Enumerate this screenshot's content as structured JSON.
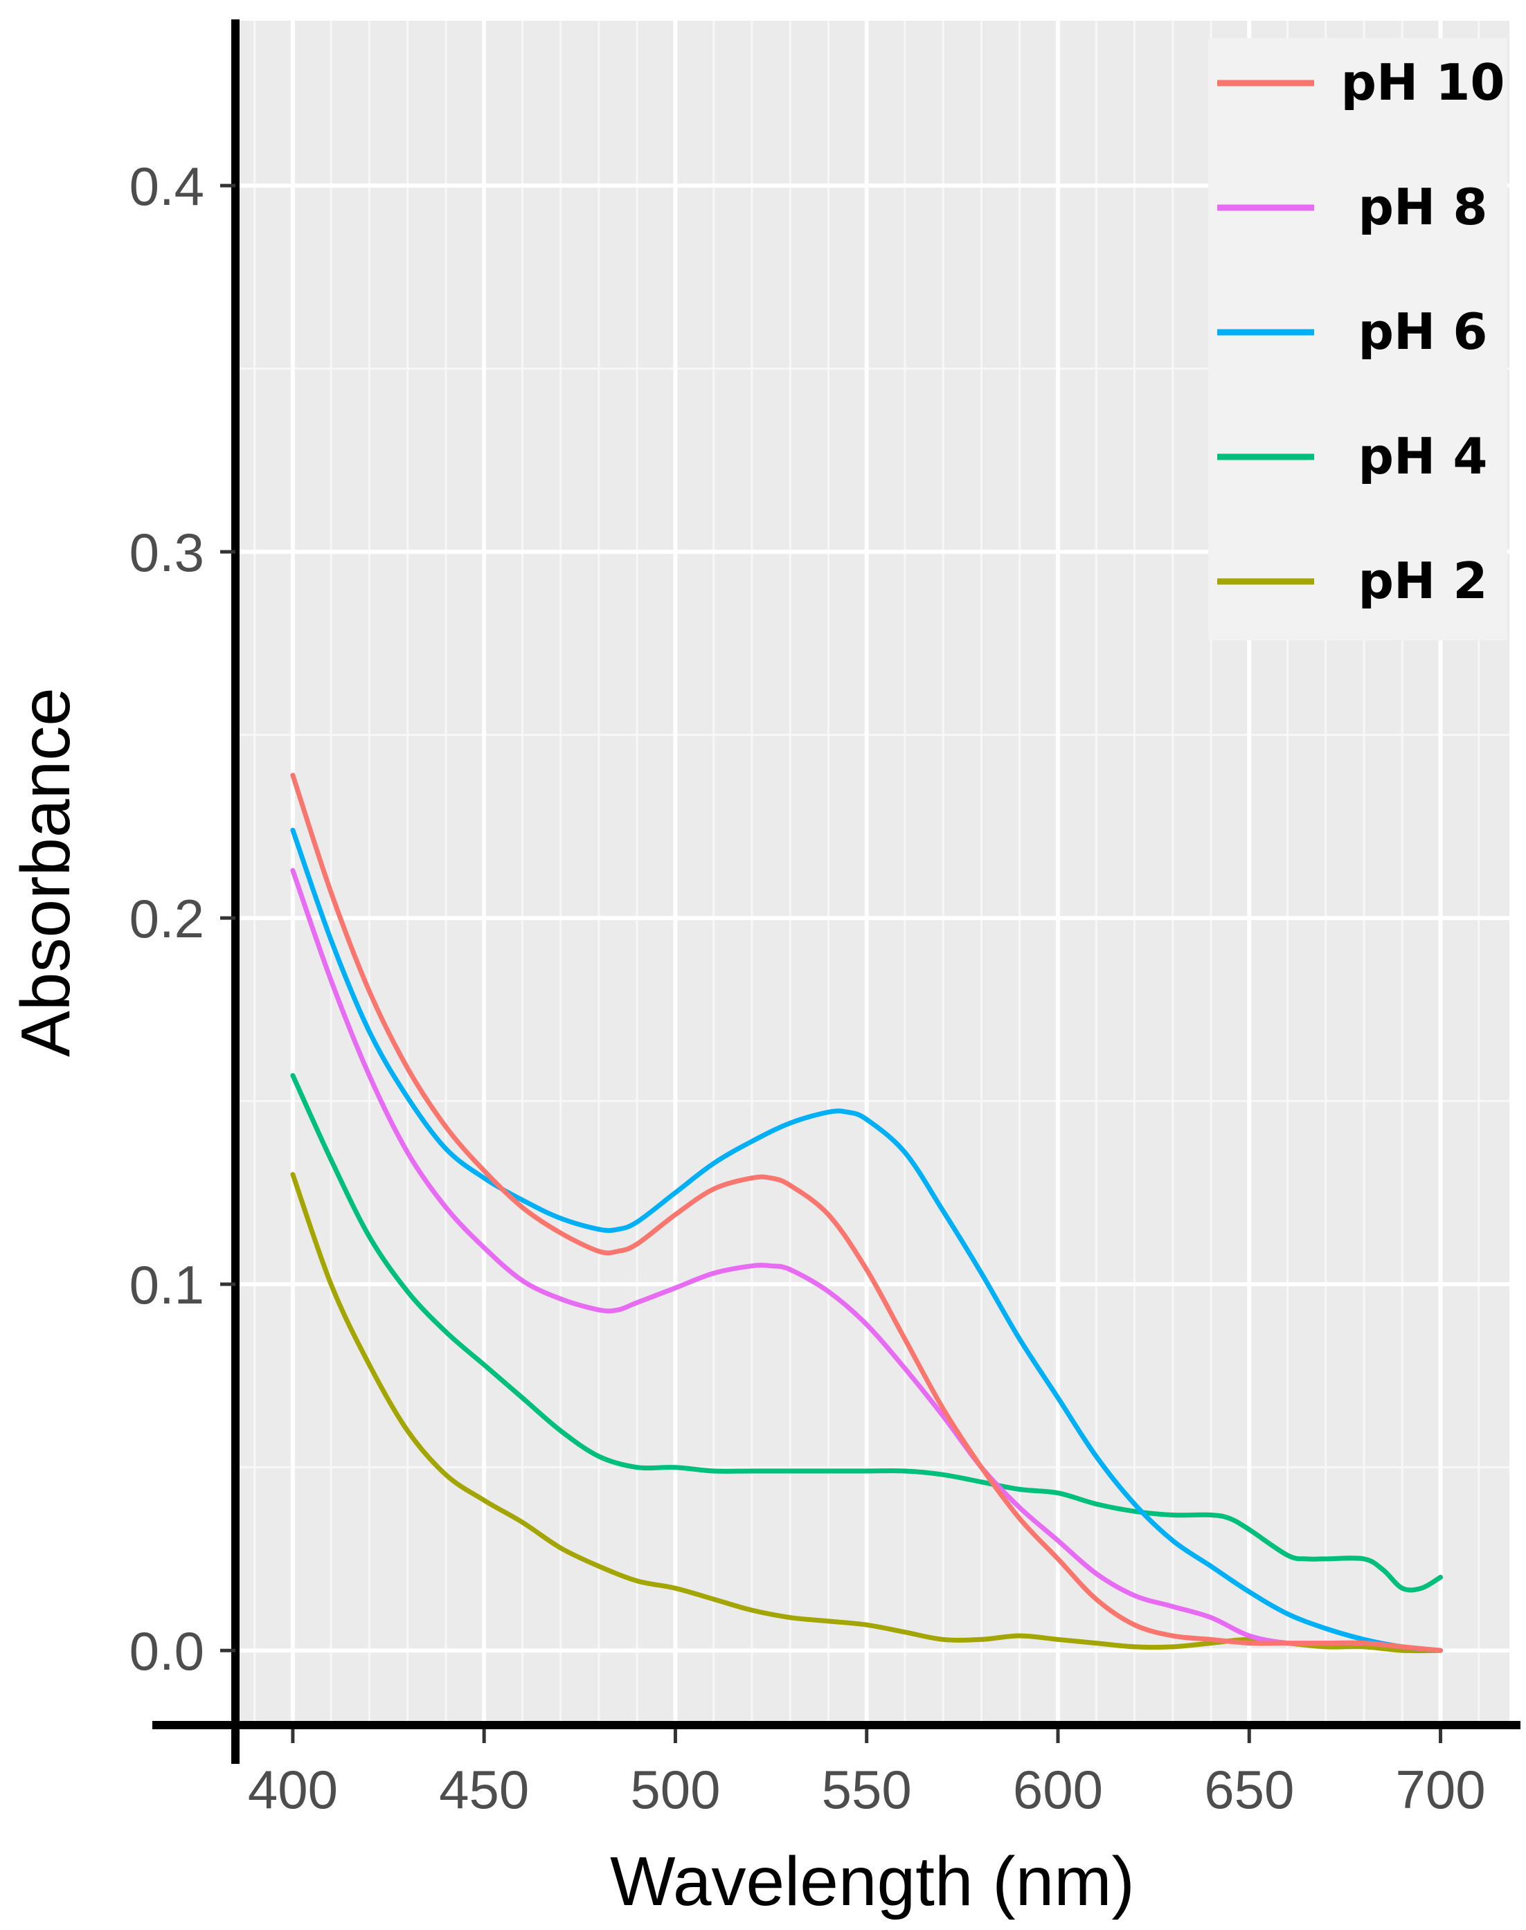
{
  "chart_data": {
    "type": "line",
    "title": "",
    "xlabel": "Wavelength (nm)",
    "ylabel": "Absorbance",
    "xlim": [
      385,
      718
    ],
    "ylim": [
      -0.02,
      0.445
    ],
    "xticks": [
      400,
      450,
      500,
      550,
      600,
      650,
      700
    ],
    "xtick_labels": [
      "400",
      "450",
      "500",
      "550",
      "600",
      "650",
      "700"
    ],
    "yticks": [
      0.0,
      0.1,
      0.2,
      0.3,
      0.4
    ],
    "ytick_labels": [
      "0.0",
      "0.1",
      "0.2",
      "0.3",
      "0.4"
    ],
    "grid": true,
    "legend_position": "top-right",
    "series": [
      {
        "name": "pH 10",
        "color": "#F8766D",
        "x": [
          400,
          410,
          420,
          430,
          440,
          450,
          460,
          470,
          480,
          485,
          490,
          500,
          510,
          520,
          525,
          530,
          540,
          550,
          560,
          570,
          580,
          590,
          600,
          610,
          620,
          630,
          640,
          650,
          660,
          670,
          680,
          690,
          700
        ],
        "y": [
          0.239,
          0.207,
          0.18,
          0.159,
          0.143,
          0.131,
          0.121,
          0.114,
          0.109,
          0.109,
          0.111,
          0.119,
          0.126,
          0.129,
          0.129,
          0.127,
          0.119,
          0.104,
          0.085,
          0.066,
          0.05,
          0.036,
          0.025,
          0.014,
          0.007,
          0.004,
          0.003,
          0.002,
          0.002,
          0.002,
          0.002,
          0.001,
          0.0
        ]
      },
      {
        "name": "pH 8",
        "color": "#E76BF3",
        "x": [
          400,
          410,
          420,
          430,
          440,
          450,
          460,
          470,
          480,
          485,
          490,
          500,
          510,
          520,
          525,
          530,
          540,
          550,
          560,
          570,
          580,
          590,
          600,
          610,
          620,
          630,
          640,
          650,
          660,
          670,
          680,
          690,
          700
        ],
        "y": [
          0.213,
          0.183,
          0.157,
          0.136,
          0.121,
          0.11,
          0.101,
          0.096,
          0.093,
          0.093,
          0.095,
          0.099,
          0.103,
          0.105,
          0.105,
          0.104,
          0.098,
          0.089,
          0.077,
          0.064,
          0.05,
          0.039,
          0.03,
          0.021,
          0.015,
          0.012,
          0.009,
          0.004,
          0.002,
          0.002,
          0.002,
          0.001,
          0.0
        ]
      },
      {
        "name": "pH 6",
        "color": "#00B0F6",
        "x": [
          400,
          410,
          420,
          430,
          440,
          450,
          460,
          470,
          480,
          485,
          490,
          500,
          510,
          520,
          530,
          540,
          545,
          550,
          560,
          570,
          580,
          590,
          600,
          610,
          620,
          630,
          640,
          650,
          660,
          670,
          680,
          690,
          700
        ],
        "y": [
          0.224,
          0.194,
          0.169,
          0.151,
          0.137,
          0.129,
          0.123,
          0.118,
          0.115,
          0.115,
          0.117,
          0.125,
          0.133,
          0.139,
          0.144,
          0.147,
          0.147,
          0.145,
          0.136,
          0.12,
          0.103,
          0.085,
          0.069,
          0.053,
          0.04,
          0.03,
          0.023,
          0.016,
          0.01,
          0.006,
          0.003,
          0.001,
          0.0
        ]
      },
      {
        "name": "pH 4",
        "color": "#00BF7D",
        "x": [
          400,
          410,
          420,
          430,
          440,
          450,
          460,
          470,
          480,
          490,
          500,
          510,
          520,
          530,
          540,
          550,
          560,
          570,
          580,
          590,
          600,
          610,
          620,
          630,
          640,
          645,
          650,
          660,
          665,
          670,
          680,
          685,
          690,
          695,
          700
        ],
        "y": [
          0.157,
          0.134,
          0.113,
          0.098,
          0.087,
          0.078,
          0.069,
          0.06,
          0.053,
          0.05,
          0.05,
          0.049,
          0.049,
          0.049,
          0.049,
          0.049,
          0.049,
          0.048,
          0.046,
          0.044,
          0.043,
          0.04,
          0.038,
          0.037,
          0.037,
          0.036,
          0.033,
          0.026,
          0.025,
          0.025,
          0.025,
          0.022,
          0.017,
          0.017,
          0.02
        ]
      },
      {
        "name": "pH 2",
        "color": "#A3A500",
        "x": [
          400,
          410,
          420,
          430,
          440,
          450,
          460,
          470,
          480,
          490,
          500,
          510,
          520,
          530,
          540,
          550,
          560,
          570,
          580,
          590,
          600,
          610,
          620,
          630,
          640,
          650,
          660,
          670,
          680,
          690,
          700
        ],
        "y": [
          0.13,
          0.1,
          0.078,
          0.06,
          0.048,
          0.041,
          0.035,
          0.028,
          0.023,
          0.019,
          0.017,
          0.014,
          0.011,
          0.009,
          0.008,
          0.007,
          0.005,
          0.003,
          0.003,
          0.004,
          0.003,
          0.002,
          0.001,
          0.001,
          0.002,
          0.003,
          0.002,
          0.001,
          0.001,
          0.0,
          0.0
        ]
      }
    ]
  }
}
